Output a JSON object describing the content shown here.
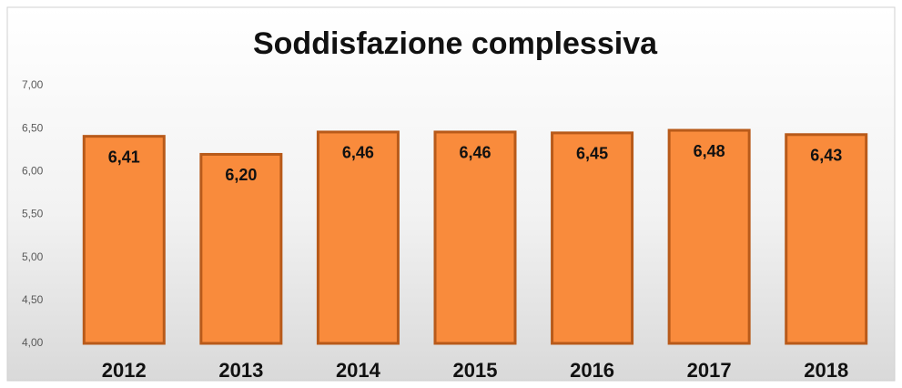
{
  "chart_data": {
    "type": "bar",
    "title": "Soddisfazione complessiva",
    "categories": [
      "2012",
      "2013",
      "2014",
      "2015",
      "2016",
      "2017",
      "2018"
    ],
    "values": [
      6.41,
      6.2,
      6.46,
      6.46,
      6.45,
      6.48,
      6.43
    ],
    "value_labels": [
      "6,41",
      "6,20",
      "6,46",
      "6,46",
      "6,45",
      "6,48",
      "6,43"
    ],
    "color": "#f98b3c",
    "ylim": [
      4,
      7
    ],
    "yticks": [
      {
        "value": 4,
        "label": "4,00"
      },
      {
        "value": 4.5,
        "label": "4,50"
      },
      {
        "value": 5,
        "label": "5,00"
      },
      {
        "value": 5.5,
        "label": "5,50"
      },
      {
        "value": 6,
        "label": "6,00"
      },
      {
        "value": 6.5,
        "label": "6,50"
      },
      {
        "value": 7,
        "label": "7,00"
      }
    ],
    "grid": false
  }
}
